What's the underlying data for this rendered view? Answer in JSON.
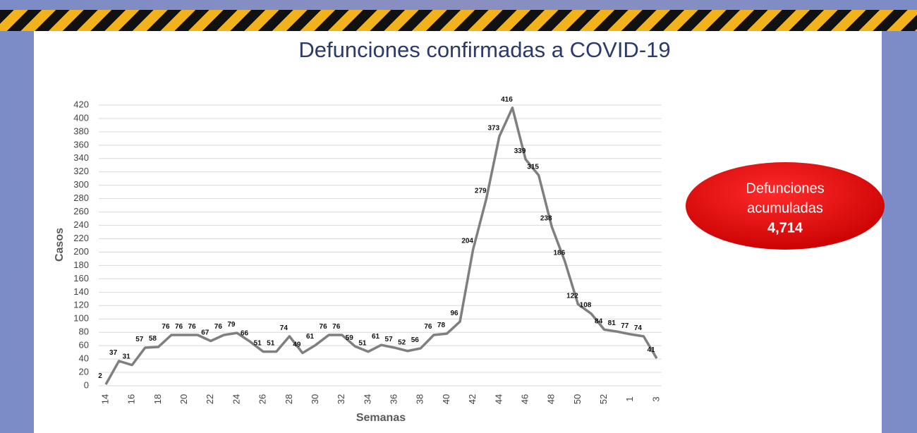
{
  "chart_data": {
    "type": "line",
    "title": "Defunciones confirmadas a COVID-19",
    "x_label": "Semanas",
    "y_label": "Casos",
    "categories": [
      "14",
      null,
      "16",
      null,
      "18",
      null,
      "20",
      null,
      "22",
      null,
      "24",
      null,
      "26",
      null,
      "28",
      null,
      "30",
      null,
      "32",
      null,
      "34",
      null,
      "36",
      null,
      "38",
      null,
      "40",
      null,
      "42",
      null,
      "44",
      null,
      "46",
      null,
      "48",
      null,
      "50",
      null,
      "52",
      null,
      "1",
      null,
      "3"
    ],
    "values": [
      2,
      37,
      31,
      57,
      58,
      76,
      76,
      76,
      67,
      76,
      79,
      66,
      51,
      51,
      74,
      49,
      61,
      76,
      76,
      59,
      51,
      61,
      57,
      52,
      56,
      76,
      78,
      96,
      204,
      279,
      373,
      416,
      339,
      315,
      238,
      186,
      122,
      108,
      84,
      81,
      77,
      74,
      41
    ],
    "color": "#7f7f7f",
    "ylim": [
      0,
      420
    ],
    "yticks": [
      0,
      20,
      40,
      60,
      80,
      100,
      120,
      140,
      160,
      180,
      200,
      220,
      240,
      260,
      280,
      300,
      320,
      340,
      360,
      380,
      400,
      420
    ],
    "grid": true
  },
  "callout": {
    "lines": [
      "Defunciones",
      "acumuladas"
    ],
    "total": "4,714"
  }
}
